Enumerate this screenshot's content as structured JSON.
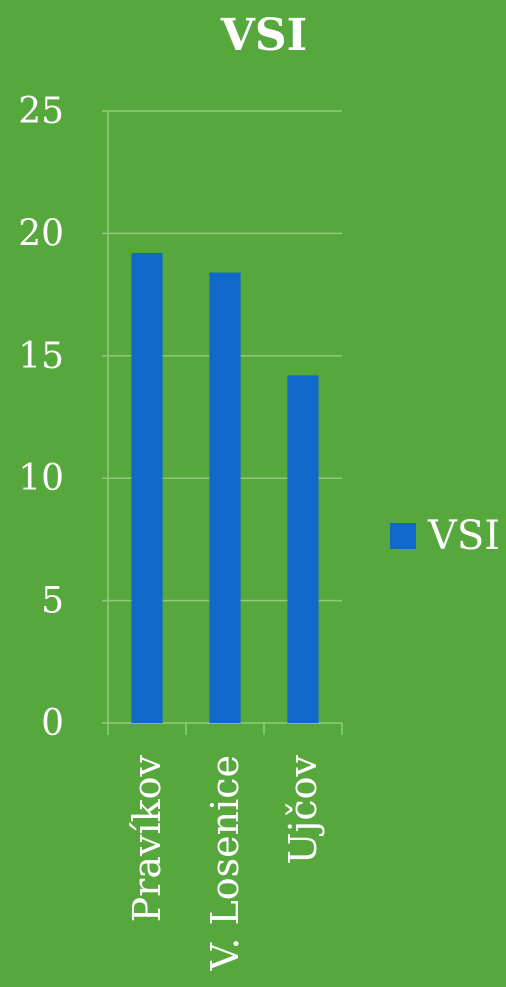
{
  "chart_data": {
    "type": "bar",
    "title": "VSI",
    "categories": [
      "Pravíkov",
      "V. Losenice",
      "Ujčov"
    ],
    "series": [
      {
        "name": "VSI",
        "values": [
          19.2,
          18.4,
          14.2
        ]
      }
    ],
    "ylim": [
      0,
      25
    ],
    "yticks": [
      0,
      5,
      10,
      15,
      20,
      25
    ],
    "xlabel": "",
    "ylabel": "",
    "grid": true,
    "legend": "right",
    "colors": {
      "background": "#56a73c",
      "bar": "#1068c8",
      "grid": "#8fcc7a",
      "text": "#ffffff"
    }
  }
}
